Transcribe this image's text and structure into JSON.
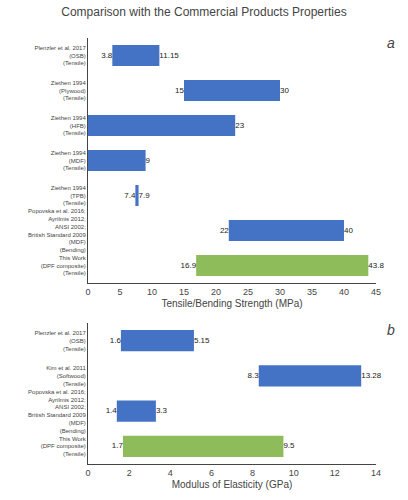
{
  "title": "Comparison with the Commercial Products Properties",
  "chart_data": [
    {
      "type": "bar",
      "orientation": "horizontal",
      "categories": [
        "Plenzler et al. 2017\n(OSB)\n(Tensile)",
        "Ziethen 1994\n(Plywood)\n(Tensile)",
        "Ziethen 1994\n(HFB)\n(Tensile)",
        "Ziethen 1994\n(MDF)\n(Tensile)",
        "Ziethen 1994\n(TPB)\n(Tensile)",
        "Popovska et al. 2016;\nAyrilmis 2012;\nANSI 2002;\nBritish Standard 2009\n(MDF)\n(Bending)",
        "This Work\n(DPF composite)\n(Tensile)"
      ],
      "starts": [
        3.8,
        15,
        0,
        0,
        7.4,
        22,
        16.9
      ],
      "values": [
        11.15,
        30,
        23,
        9,
        7.9,
        40,
        43.8
      ],
      "start_labels": [
        "3.8",
        "15",
        null,
        null,
        "7.4",
        "22",
        "16.9"
      ],
      "colors": [
        "#4472c4",
        "#4472c4",
        "#4472c4",
        "#4472c4",
        "#4472c4",
        "#4472c4",
        "#8fbc5a"
      ],
      "xlabel": "Tensile/Bending Strength (MPa)",
      "xlim": [
        0,
        45
      ],
      "xticks": [
        0,
        5,
        10,
        15,
        20,
        25,
        30,
        35,
        40,
        45
      ],
      "data_labels": true,
      "grid": false,
      "annotations": [
        {
          "text": "a"
        }
      ]
    },
    {
      "type": "bar",
      "orientation": "horizontal",
      "categories": [
        "Plenzler et al. 2017\n(OSB)\n(Tensile)",
        "Kim et al. 2011\n(Softwood)\n(Tensile)",
        "Popovska et al. 2016;\nAyrilmis 2012;\nANSI 2002;\nBritish Standard 2009\n(MDF)\n(Bending)",
        "This Work\n(DPF composite)\n(Tensile)"
      ],
      "starts": [
        1.6,
        8.3,
        1.4,
        1.7
      ],
      "values": [
        5.15,
        13.28,
        3.3,
        9.5
      ],
      "start_labels": [
        "1.6",
        "8.3",
        "1.4",
        "1.7"
      ],
      "colors": [
        "#4472c4",
        "#4472c4",
        "#4472c4",
        "#8fbc5a"
      ],
      "xlabel": "Modulus of Elasticity (GPa)",
      "xlim": [
        0,
        14
      ],
      "xticks": [
        0,
        2,
        4,
        6,
        8,
        10,
        12,
        14
      ],
      "data_labels": true,
      "grid": false,
      "annotations": [
        {
          "text": "b"
        }
      ]
    }
  ]
}
